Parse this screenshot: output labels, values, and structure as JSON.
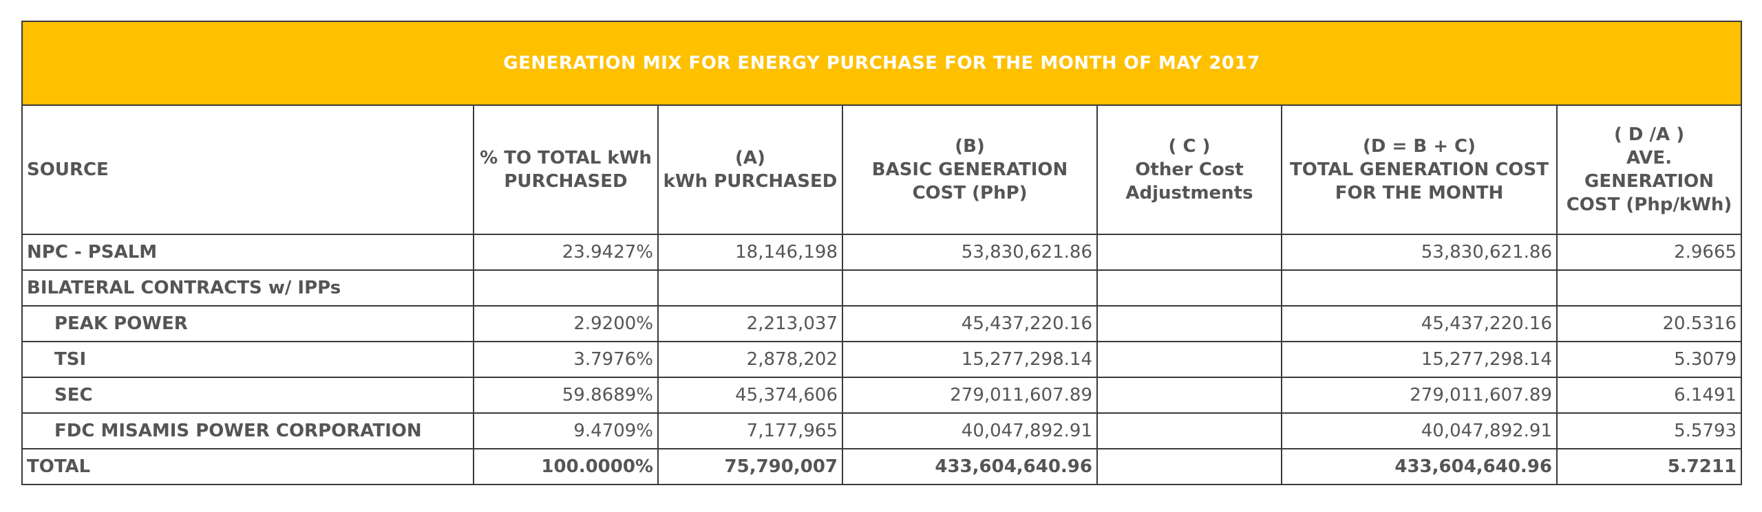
{
  "title": "GENERATION MIX  FOR ENERGY PURCHASE FOR THE MONTH OF MAY 2017",
  "headers": {
    "source": "SOURCE",
    "pct": [
      "% TO TOTAL kWh",
      "PURCHASED"
    ],
    "kwh": [
      "(A)",
      "kWh PURCHASED"
    ],
    "basic": [
      "(B)",
      "BASIC GENERATION",
      "COST (PhP)"
    ],
    "other": [
      "( C )",
      "Other Cost",
      "Adjustments"
    ],
    "total_cost": [
      "(D = B + C)",
      "TOTAL GENERATION COST",
      "FOR THE MONTH"
    ],
    "ave": [
      "( D /A )",
      "AVE.",
      "GENERATION",
      "COST (Php/kWh)"
    ]
  },
  "rows": [
    {
      "source": "NPC - PSALM",
      "indent": false,
      "pct": "23.9427%",
      "kwh": "18,146,198",
      "basic": "53,830,621.86",
      "other": "",
      "total_cost": "53,830,621.86",
      "ave": "2.9665"
    },
    {
      "source": "BILATERAL CONTRACTS w/ IPPs",
      "indent": false,
      "pct": "",
      "kwh": "",
      "basic": "",
      "other": "",
      "total_cost": "",
      "ave": ""
    },
    {
      "source": "PEAK POWER",
      "indent": true,
      "pct": "2.9200%",
      "kwh": "2,213,037",
      "basic": "45,437,220.16",
      "other": "",
      "total_cost": "45,437,220.16",
      "ave": "20.5316"
    },
    {
      "source": "TSI",
      "indent": true,
      "pct": "3.7976%",
      "kwh": "2,878,202",
      "basic": "15,277,298.14",
      "other": "",
      "total_cost": "15,277,298.14",
      "ave": "5.3079"
    },
    {
      "source": "SEC",
      "indent": true,
      "pct": "59.8689%",
      "kwh": "45,374,606",
      "basic": "279,011,607.89",
      "other": "",
      "total_cost": "279,011,607.89",
      "ave": "6.1491"
    },
    {
      "source": "FDC MISAMIS POWER CORPORATION",
      "indent": true,
      "pct": "9.4709%",
      "kwh": "7,177,965",
      "basic": "40,047,892.91",
      "other": "",
      "total_cost": "40,047,892.91",
      "ave": "5.5793"
    }
  ],
  "total": {
    "source": "TOTAL",
    "pct": "100.0000%",
    "kwh": "75,790,007",
    "basic": "433,604,640.96",
    "other": "",
    "total_cost": "433,604,640.96",
    "ave": "5.7211"
  },
  "colors": {
    "title_bg": "#ffc000",
    "title_text": "#ffffff",
    "text": "#555555",
    "border": "#3a3a3a"
  }
}
